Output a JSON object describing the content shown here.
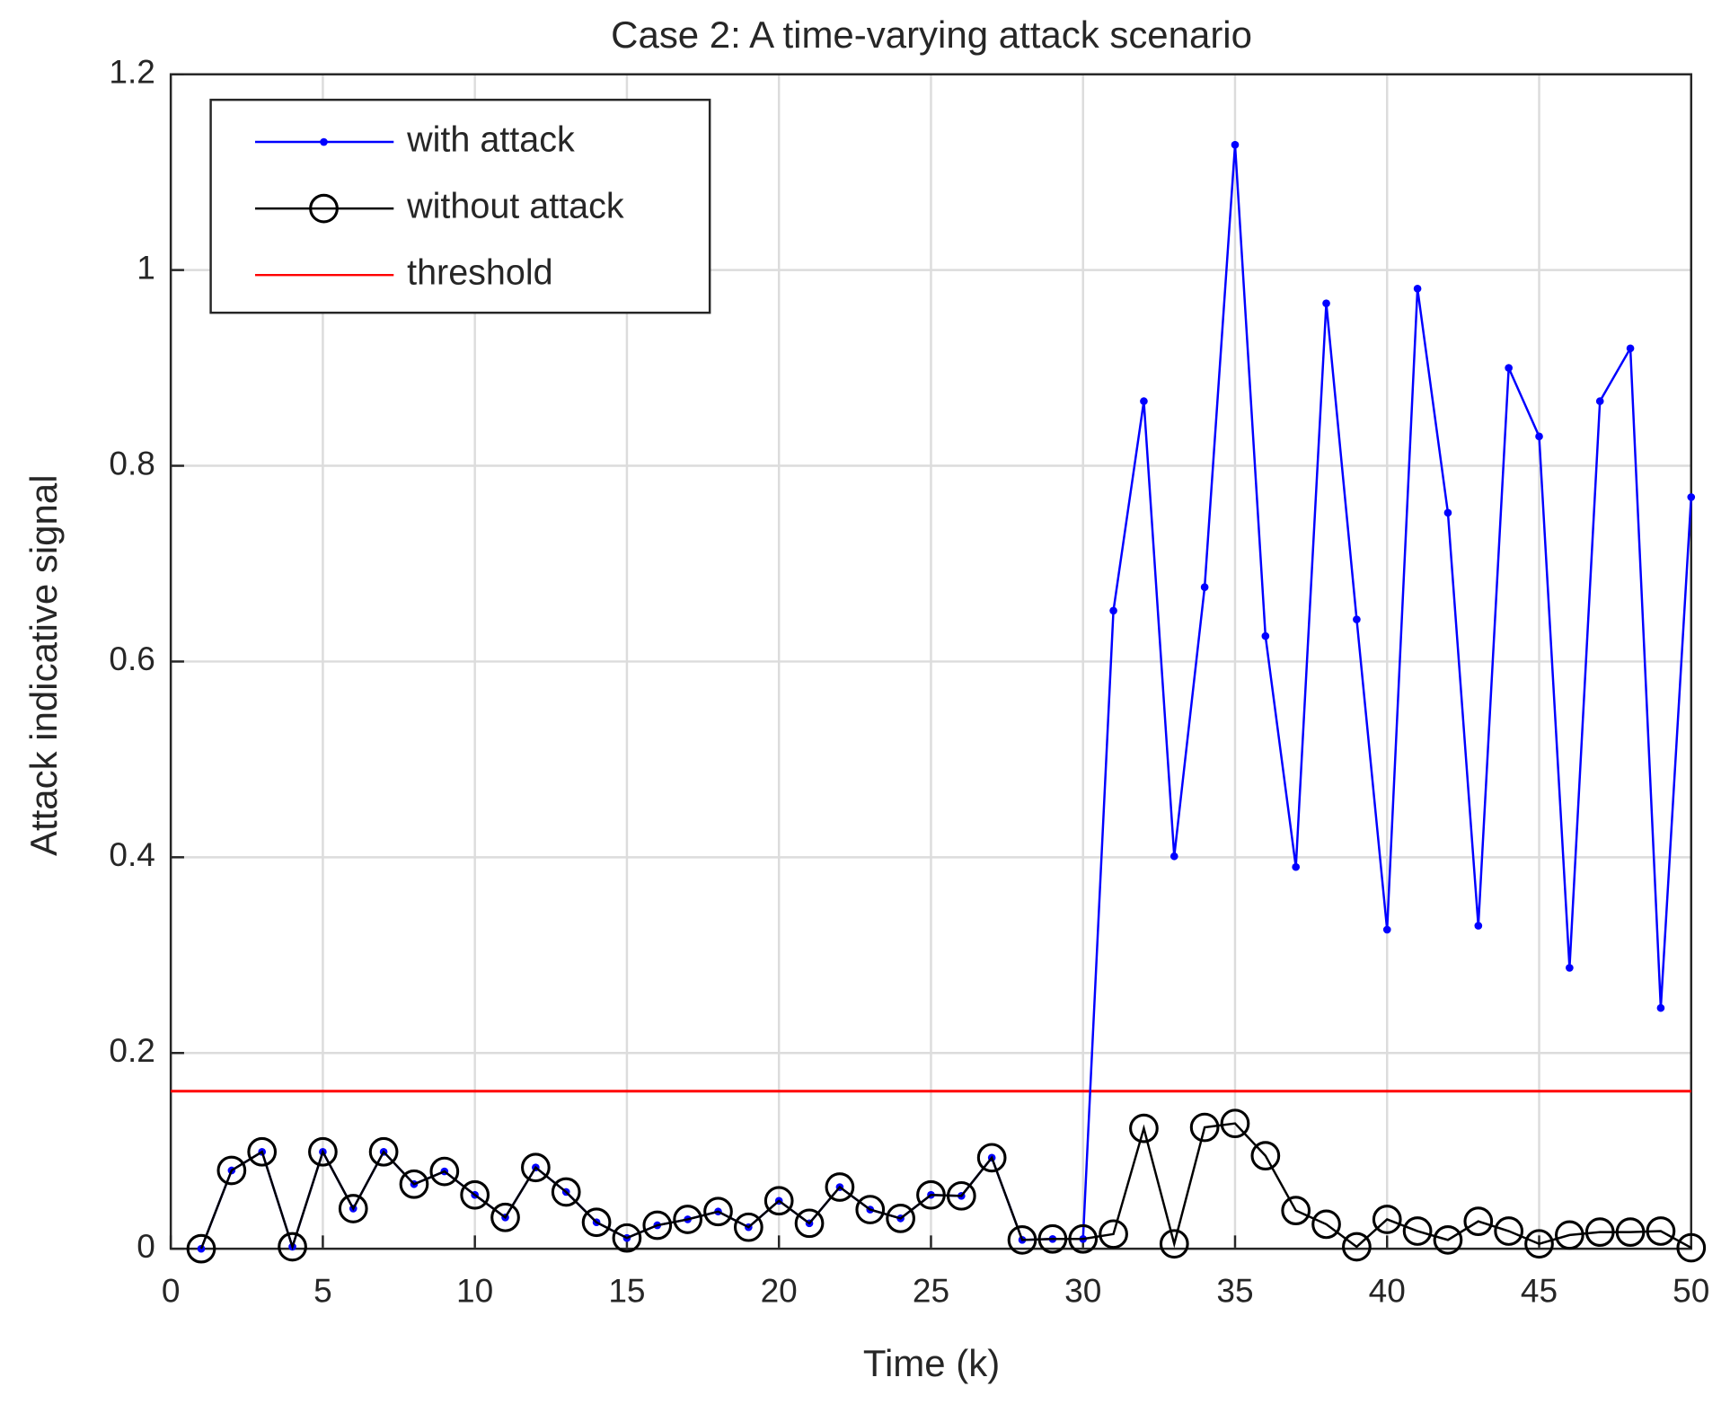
{
  "chart_data": {
    "type": "line",
    "title": "Case 2: A time-varying attack scenario",
    "xlabel": "Time (k)",
    "ylabel": "Attack indicative signal",
    "x": [
      1,
      2,
      3,
      4,
      5,
      6,
      7,
      8,
      9,
      10,
      11,
      12,
      13,
      14,
      15,
      16,
      17,
      18,
      19,
      20,
      21,
      22,
      23,
      24,
      25,
      26,
      27,
      28,
      29,
      30,
      31,
      32,
      33,
      34,
      35,
      36,
      37,
      38,
      39,
      40,
      41,
      42,
      43,
      44,
      45,
      46,
      47,
      48,
      49,
      50
    ],
    "series": [
      {
        "name": "with attack",
        "color": "#0000ff",
        "marker": "dot",
        "values": [
          0,
          0.08,
          0.099,
          0.002,
          0.099,
          0.041,
          0.099,
          0.066,
          0.079,
          0.055,
          0.032,
          0.083,
          0.058,
          0.027,
          0.011,
          0.024,
          0.03,
          0.038,
          0.022,
          0.049,
          0.026,
          0.063,
          0.04,
          0.031,
          0.055,
          0.054,
          0.093,
          0.009,
          0.01,
          0.01,
          0.652,
          0.866,
          0.401,
          0.676,
          1.128,
          0.626,
          0.39,
          0.966,
          0.643,
          0.326,
          0.981,
          0.752,
          0.33,
          0.9,
          0.83,
          0.287,
          0.866,
          0.92,
          0.246,
          0.768
        ]
      },
      {
        "name": "without attack",
        "color": "#000000",
        "marker": "circle",
        "values": [
          0,
          0.08,
          0.099,
          0.002,
          0.099,
          0.041,
          0.099,
          0.066,
          0.079,
          0.055,
          0.032,
          0.083,
          0.058,
          0.027,
          0.011,
          0.024,
          0.03,
          0.038,
          0.022,
          0.049,
          0.026,
          0.063,
          0.04,
          0.031,
          0.055,
          0.054,
          0.093,
          0.009,
          0.01,
          0.01,
          0.015,
          0.123,
          0.005,
          0.124,
          0.128,
          0.095,
          0.039,
          0.025,
          0.002,
          0.03,
          0.018,
          0.009,
          0.028,
          0.018,
          0.005,
          0.014,
          0.017,
          0.017,
          0.018,
          0.001
        ]
      }
    ],
    "threshold": {
      "name": "threshold",
      "color": "#ff0000",
      "value": 0.161
    },
    "xlim": [
      0,
      50
    ],
    "xticks": [
      0,
      5,
      10,
      15,
      20,
      25,
      30,
      35,
      40,
      45,
      50
    ],
    "ylim": [
      0,
      1.2
    ],
    "yticks": [
      0,
      0.2,
      0.4,
      0.6,
      0.8,
      1,
      1.2
    ],
    "grid": true,
    "legend": "upper left"
  }
}
